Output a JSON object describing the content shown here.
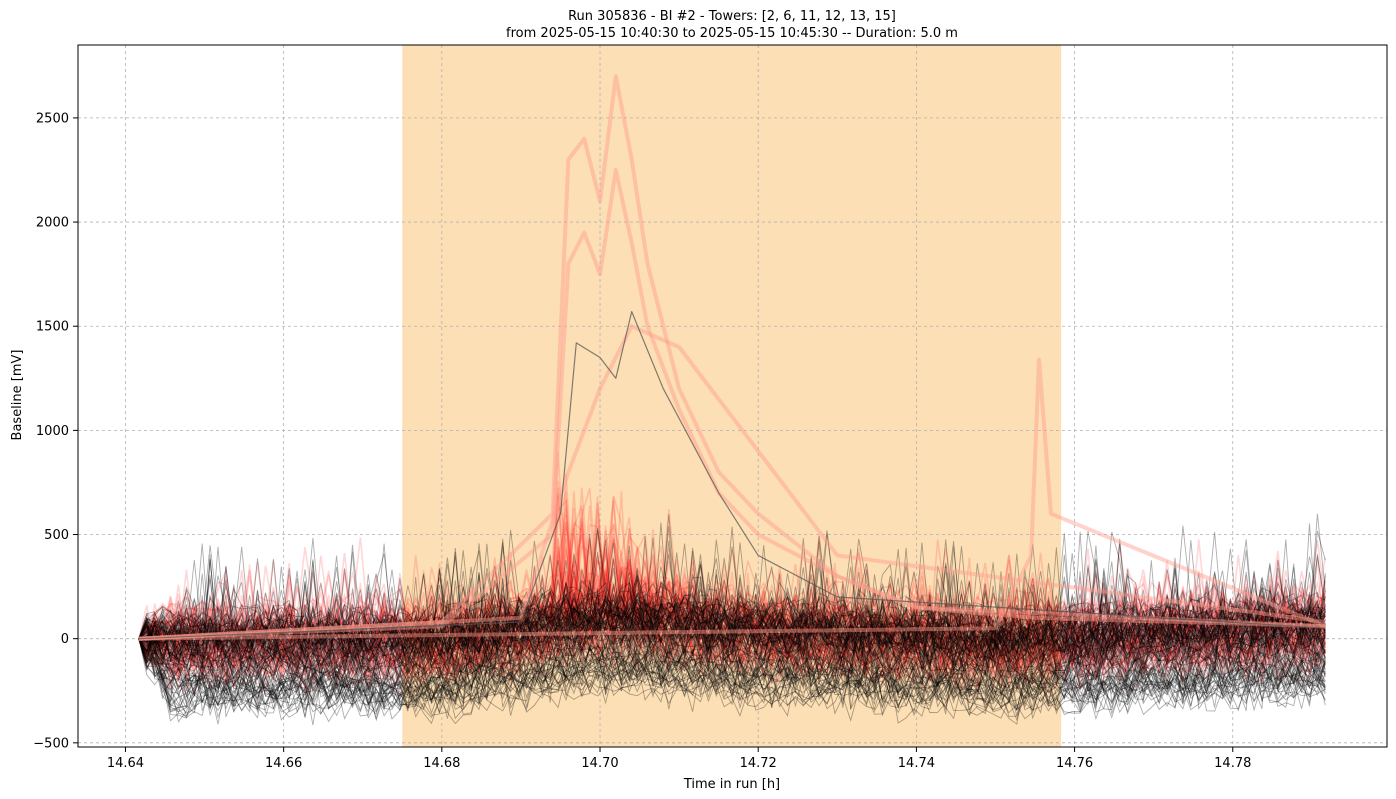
{
  "chart_data": {
    "type": "line",
    "title": "Run 305836  -  BI #2  -  Towers: [2, 6, 11, 12, 13, 15]",
    "subtitle": "from  2025-05-15 10:40:30  to  2025-05-15 10:45:30 -- Duration: 5.0 m",
    "xlabel": "Time in run [h]",
    "ylabel": "Baseline [mV]",
    "xlim": [
      14.634,
      14.7995
    ],
    "ylim": [
      -520,
      2850
    ],
    "xticks": [
      14.64,
      14.66,
      14.68,
      14.7,
      14.72,
      14.74,
      14.76,
      14.78
    ],
    "xtick_labels": [
      "14.64",
      "14.66",
      "14.68",
      "14.70",
      "14.72",
      "14.74",
      "14.76",
      "14.78"
    ],
    "yticks": [
      -500,
      0,
      500,
      1000,
      1500,
      2000,
      2500
    ],
    "ytick_labels": [
      "−500",
      "0",
      "500",
      "1000",
      "1500",
      "2000",
      "2500"
    ],
    "grid": true,
    "highlight_span": {
      "x_start": 14.675,
      "x_end": 14.7583,
      "color": "#fdd9a8"
    },
    "colors": {
      "black_traces": "#000000",
      "red_traces": "#ff0000",
      "span": "#fdd9a8"
    },
    "series": [
      {
        "color": "#ff9b8c",
        "x": [
          14.6417,
          14.66,
          14.68,
          14.694,
          14.696,
          14.698,
          14.7,
          14.702,
          14.704,
          14.706,
          14.71,
          14.715,
          14.72,
          14.73,
          14.74,
          14.755,
          14.7917
        ],
        "values": [
          0,
          40,
          80,
          600,
          2300,
          2400,
          2100,
          2700,
          2300,
          1800,
          1200,
          800,
          600,
          300,
          150,
          100,
          60
        ]
      },
      {
        "color": "#ff9b8c",
        "x": [
          14.6417,
          14.66,
          14.68,
          14.694,
          14.696,
          14.698,
          14.7,
          14.702,
          14.704,
          14.706,
          14.71,
          14.715,
          14.72,
          14.73,
          14.74,
          14.7917
        ],
        "values": [
          0,
          30,
          60,
          500,
          1800,
          1950,
          1750,
          2250,
          1900,
          1500,
          1100,
          700,
          500,
          300,
          150,
          60
        ]
      },
      {
        "color": "#ff9b8c",
        "x": [
          14.6417,
          14.69,
          14.696,
          14.7,
          14.704,
          14.71,
          14.72,
          14.73,
          14.7917
        ],
        "values": [
          0,
          100,
          800,
          1200,
          1500,
          1400,
          900,
          400,
          80
        ]
      },
      {
        "color": "#ff9b8c",
        "x": [
          14.6417,
          14.75,
          14.7545,
          14.7555,
          14.757,
          14.7917
        ],
        "values": [
          0,
          50,
          400,
          1340,
          600,
          60
        ]
      },
      {
        "color": "#555555",
        "x": [
          14.6417,
          14.69,
          14.695,
          14.697,
          14.7,
          14.702,
          14.704,
          14.708,
          14.715,
          14.72,
          14.73,
          14.7917
        ],
        "values": [
          0,
          80,
          600,
          1420,
          1350,
          1250,
          1570,
          1200,
          700,
          400,
          200,
          50
        ]
      }
    ]
  }
}
